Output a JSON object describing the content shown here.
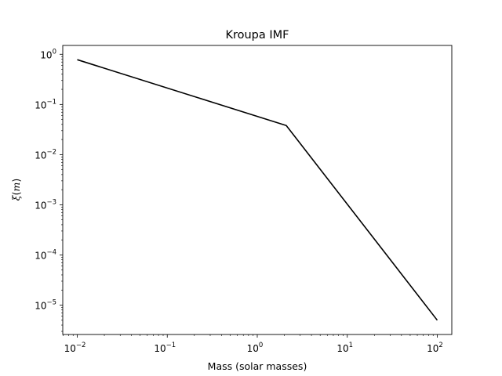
{
  "chart_data": {
    "type": "line",
    "title": "Kroupa IMF",
    "xlabel": "Mass (solar masses)",
    "ylabel_symbol": "ξ",
    "ylabel_arg": "m",
    "xscale": "log",
    "yscale": "log",
    "xlim": [
      0.0069,
      145
    ],
    "ylim": [
      2.6e-06,
      1.5
    ],
    "grid": false,
    "x_ticks": [
      {
        "base": "10",
        "exp": "−2",
        "value": 0.01
      },
      {
        "base": "10",
        "exp": "−1",
        "value": 0.1
      },
      {
        "base": "10",
        "exp": "0",
        "value": 1
      },
      {
        "base": "10",
        "exp": "1",
        "value": 10
      },
      {
        "base": "10",
        "exp": "2",
        "value": 100
      }
    ],
    "y_ticks": [
      {
        "base": "10",
        "exp": "0",
        "value": 1
      },
      {
        "base": "10",
        "exp": "−1",
        "value": 0.1
      },
      {
        "base": "10",
        "exp": "−2",
        "value": 0.01
      },
      {
        "base": "10",
        "exp": "−3",
        "value": 0.001
      },
      {
        "base": "10",
        "exp": "−4",
        "value": 0.0001
      },
      {
        "base": "10",
        "exp": "−5",
        "value": 1e-05
      }
    ],
    "series": [
      {
        "color": "#000000",
        "x": [
          0.01,
          2.1,
          100
        ],
        "y": [
          0.78,
          0.038,
          5e-06
        ]
      }
    ]
  }
}
